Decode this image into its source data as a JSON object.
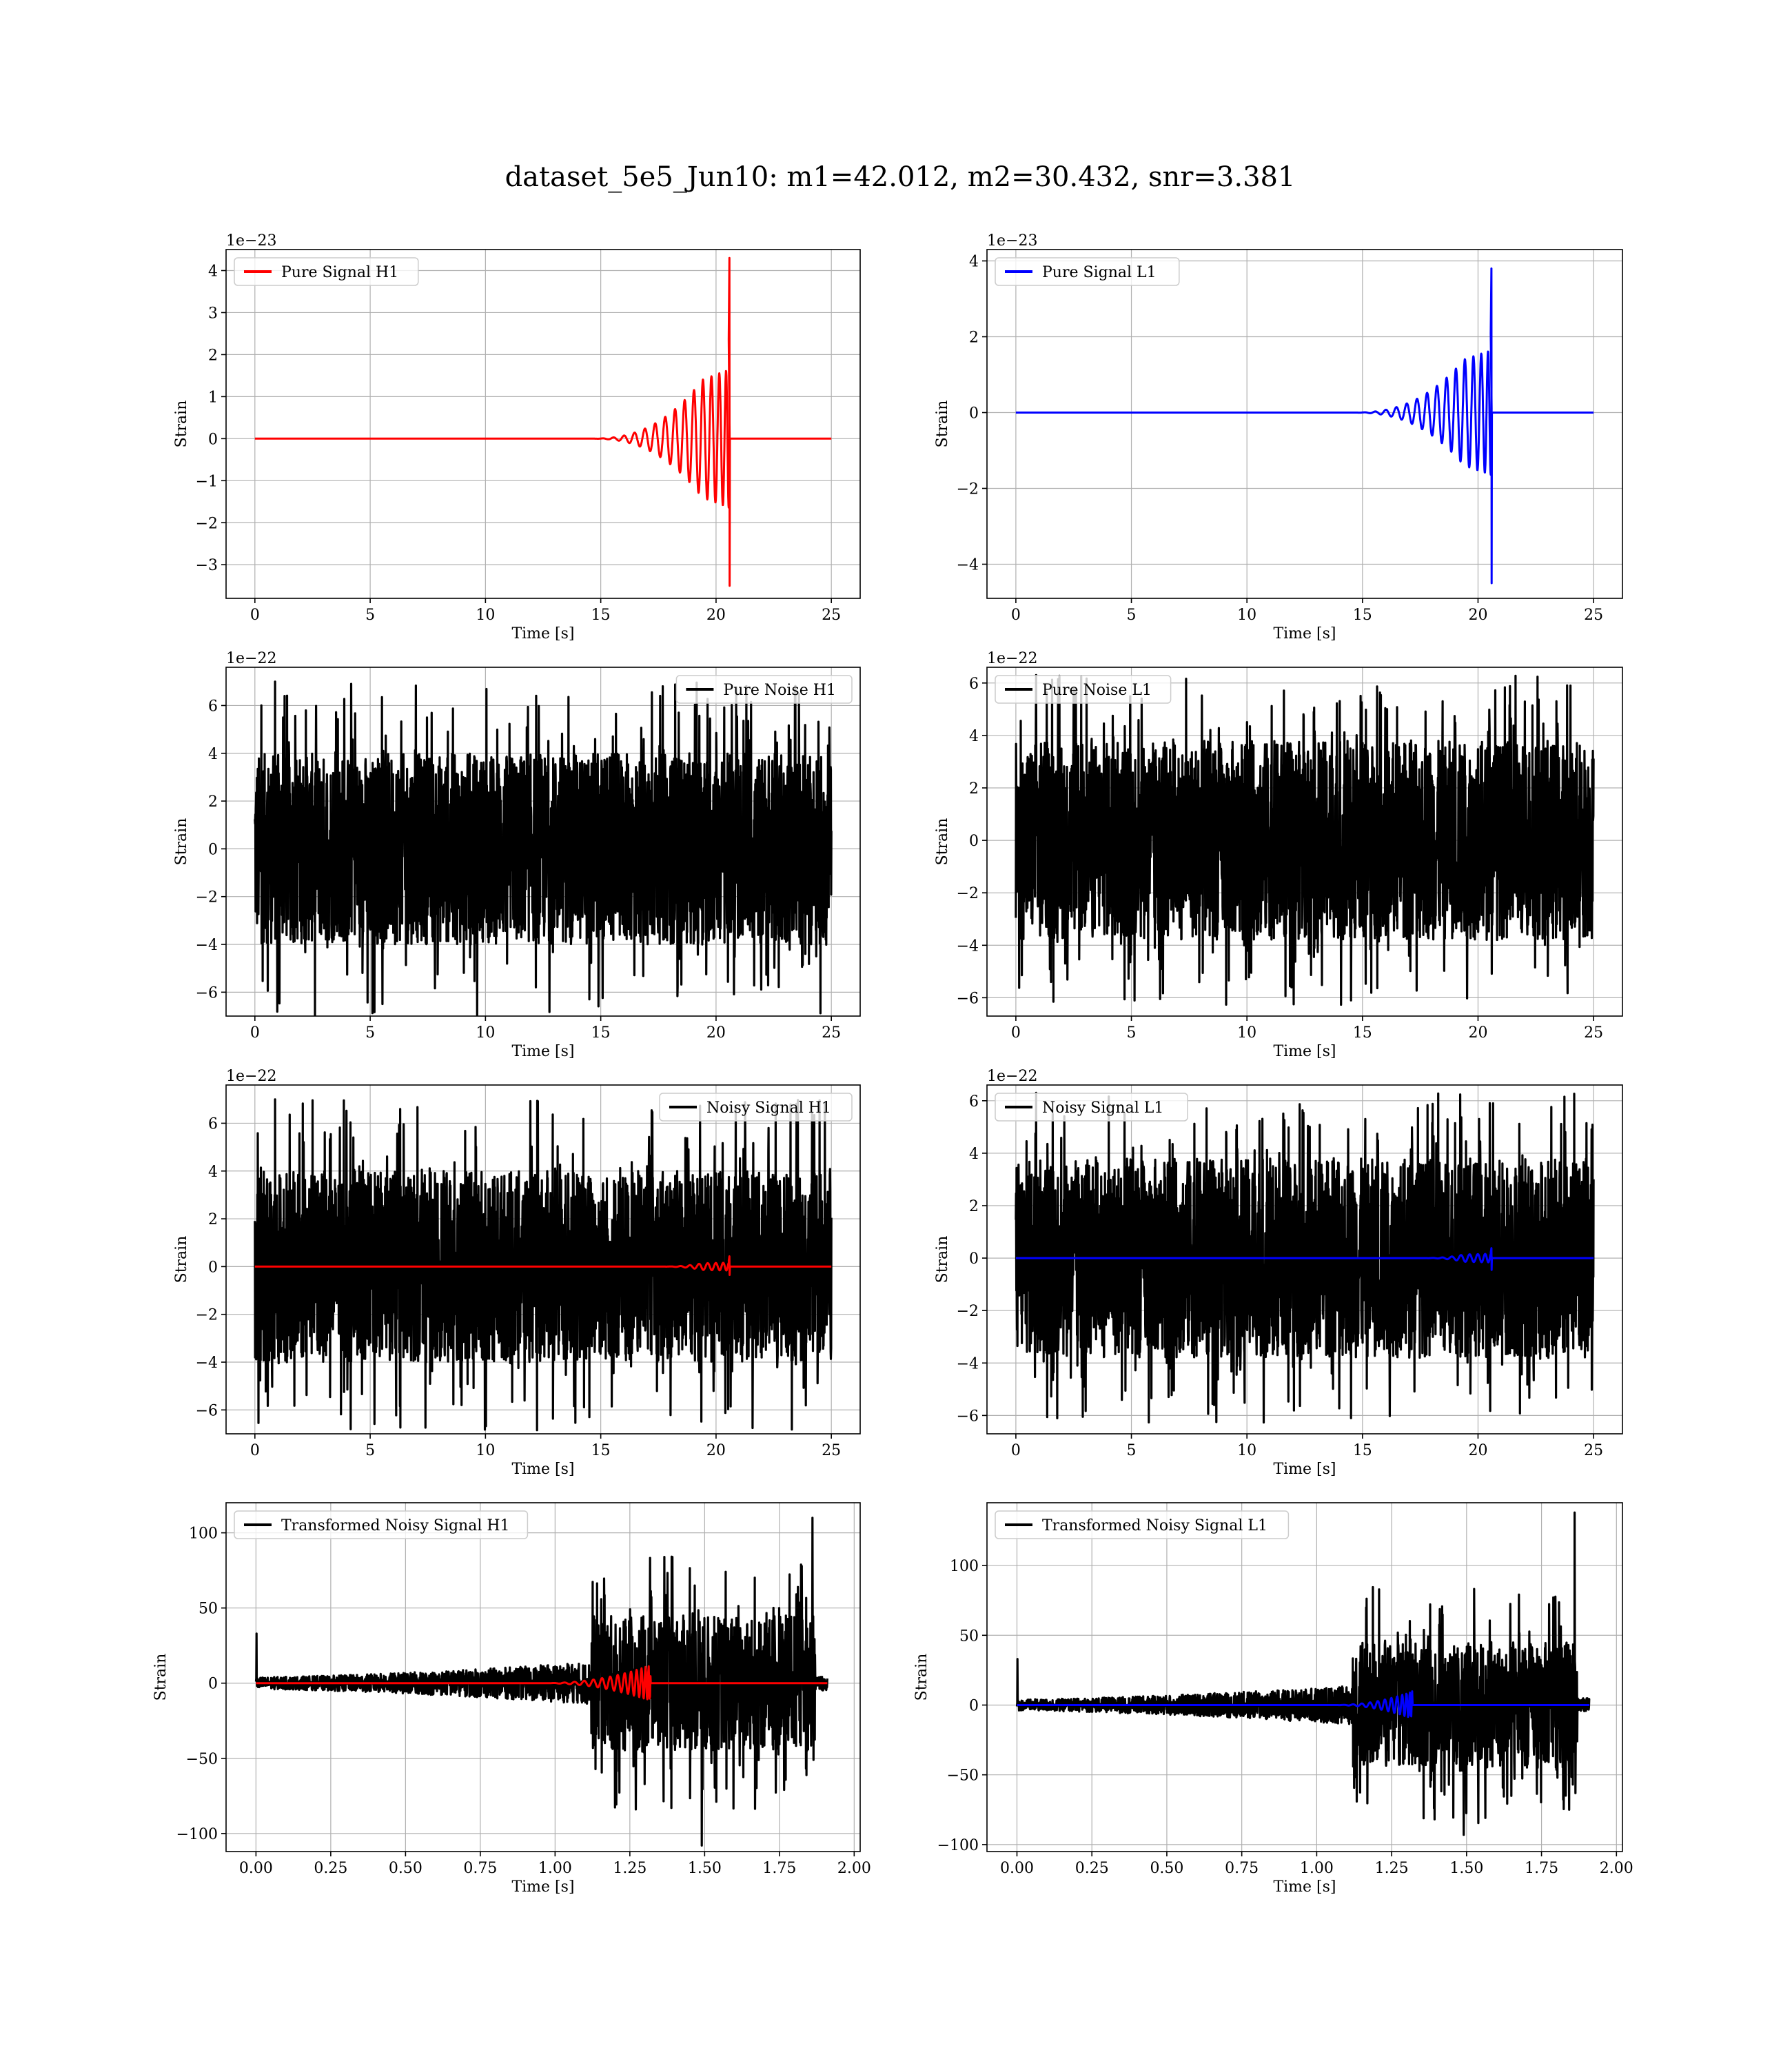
{
  "figure": {
    "title": "dataset_5e5_Jun10: m1=42.012, m2=30.432, snr=3.381"
  },
  "chart_data": [
    {
      "id": "pure_h1",
      "type": "line",
      "title": "",
      "xlabel": "Time [s]",
      "ylabel": "Strain",
      "offset_text": "1e−23",
      "xlim": [
        -1.25,
        26.25
      ],
      "ylim": [
        -3.8,
        4.5
      ],
      "xticks": [
        0,
        5,
        10,
        15,
        20,
        25
      ],
      "xtick_labels": [
        "0",
        "5",
        "10",
        "15",
        "20",
        "25"
      ],
      "yticks": [
        -3,
        -2,
        -1,
        0,
        1,
        2,
        3,
        4
      ],
      "ytick_labels": [
        "−3",
        "−2",
        "−1",
        "0",
        "1",
        "2",
        "3",
        "4"
      ],
      "grid": true,
      "legend_position": "upper-left",
      "series": [
        {
          "name": "Pure Signal H1",
          "color": "#ff0000",
          "kind": "chirp",
          "x_end": 25,
          "t_merger": 20.6,
          "t_start_visible": 14.5,
          "peak_pos": 4.3,
          "peak_neg": -3.5,
          "plateau_amp": 1.4
        }
      ]
    },
    {
      "id": "pure_l1",
      "type": "line",
      "title": "",
      "xlabel": "Time [s]",
      "ylabel": "Strain",
      "offset_text": "1e−23",
      "xlim": [
        -1.25,
        26.25
      ],
      "ylim": [
        -4.9,
        4.3
      ],
      "xticks": [
        0,
        5,
        10,
        15,
        20,
        25
      ],
      "xtick_labels": [
        "0",
        "5",
        "10",
        "15",
        "20",
        "25"
      ],
      "yticks": [
        -4,
        -2,
        0,
        2,
        4
      ],
      "ytick_labels": [
        "−4",
        "−2",
        "0",
        "2",
        "4"
      ],
      "grid": true,
      "legend_position": "upper-left",
      "series": [
        {
          "name": "Pure Signal L1",
          "color": "#0000ff",
          "kind": "chirp",
          "x_end": 25,
          "t_merger": 20.6,
          "t_start_visible": 14.5,
          "peak_pos": 3.8,
          "peak_neg": -4.5,
          "plateau_amp": 1.4
        }
      ]
    },
    {
      "id": "noise_h1",
      "type": "line",
      "title": "",
      "xlabel": "Time [s]",
      "ylabel": "Strain",
      "offset_text": "1e−22",
      "xlim": [
        -1.25,
        26.25
      ],
      "ylim": [
        -7.0,
        7.6
      ],
      "xticks": [
        0,
        5,
        10,
        15,
        20,
        25
      ],
      "xtick_labels": [
        "0",
        "5",
        "10",
        "15",
        "20",
        "25"
      ],
      "yticks": [
        -6,
        -4,
        -2,
        0,
        2,
        4,
        6
      ],
      "ytick_labels": [
        "−6",
        "−4",
        "−2",
        "0",
        "2",
        "4",
        "6"
      ],
      "grid": true,
      "legend_position": "upper-right",
      "series": [
        {
          "name": "Pure Noise H1",
          "color": "#000000",
          "kind": "noise",
          "x_end": 25,
          "core_amp": 4.0,
          "max": 7.0,
          "min": -6.3
        }
      ]
    },
    {
      "id": "noise_l1",
      "type": "line",
      "title": "",
      "xlabel": "Time [s]",
      "ylabel": "Strain",
      "offset_text": "1e−22",
      "xlim": [
        -1.25,
        26.25
      ],
      "ylim": [
        -6.7,
        6.6
      ],
      "xticks": [
        0,
        5,
        10,
        15,
        20,
        25
      ],
      "xtick_labels": [
        "0",
        "5",
        "10",
        "15",
        "20",
        "25"
      ],
      "yticks": [
        -6,
        -4,
        -2,
        0,
        2,
        4,
        6
      ],
      "ytick_labels": [
        "−6",
        "−4",
        "−2",
        "0",
        "2",
        "4",
        "6"
      ],
      "grid": true,
      "legend_position": "upper-left",
      "series": [
        {
          "name": "Pure Noise L1",
          "color": "#000000",
          "kind": "noise",
          "x_end": 25,
          "core_amp": 3.8,
          "max": 6.3,
          "min": -6.1
        }
      ]
    },
    {
      "id": "noisy_h1",
      "type": "line",
      "title": "",
      "xlabel": "Time [s]",
      "ylabel": "Strain",
      "offset_text": "1e−22",
      "xlim": [
        -1.25,
        26.25
      ],
      "ylim": [
        -7.0,
        7.6
      ],
      "xticks": [
        0,
        5,
        10,
        15,
        20,
        25
      ],
      "xtick_labels": [
        "0",
        "5",
        "10",
        "15",
        "20",
        "25"
      ],
      "yticks": [
        -6,
        -4,
        -2,
        0,
        2,
        4,
        6
      ],
      "ytick_labels": [
        "−6",
        "−4",
        "−2",
        "0",
        "2",
        "4",
        "6"
      ],
      "grid": true,
      "legend_position": "upper-right",
      "series": [
        {
          "name": "Noisy Signal H1",
          "color": "#000000",
          "kind": "noise",
          "x_end": 25,
          "core_amp": 4.0,
          "max": 7.0,
          "min": -6.3
        },
        {
          "name": "",
          "color": "#ff0000",
          "kind": "chirp",
          "x_end": 25,
          "t_merger": 20.6,
          "t_start_visible": 17.5,
          "peak_pos": 0.43,
          "peak_neg": -0.35,
          "plateau_amp": 0.14
        }
      ]
    },
    {
      "id": "noisy_l1",
      "type": "line",
      "title": "",
      "xlabel": "Time [s]",
      "ylabel": "Strain",
      "offset_text": "1e−22",
      "xlim": [
        -1.25,
        26.25
      ],
      "ylim": [
        -6.7,
        6.6
      ],
      "xticks": [
        0,
        5,
        10,
        15,
        20,
        25
      ],
      "xtick_labels": [
        "0",
        "5",
        "10",
        "15",
        "20",
        "25"
      ],
      "yticks": [
        -6,
        -4,
        -2,
        0,
        2,
        4,
        6
      ],
      "ytick_labels": [
        "−6",
        "−4",
        "−2",
        "0",
        "2",
        "4",
        "6"
      ],
      "grid": true,
      "legend_position": "upper-left",
      "series": [
        {
          "name": "Noisy Signal L1",
          "color": "#000000",
          "kind": "noise",
          "x_end": 25,
          "core_amp": 3.8,
          "max": 6.3,
          "min": -6.1
        },
        {
          "name": "",
          "color": "#0000ff",
          "kind": "chirp",
          "x_end": 25,
          "t_merger": 20.6,
          "t_start_visible": 17.5,
          "peak_pos": 0.38,
          "peak_neg": -0.45,
          "plateau_amp": 0.14
        }
      ]
    },
    {
      "id": "trans_h1",
      "type": "line",
      "title": "",
      "xlabel": "Time [s]",
      "ylabel": "Strain",
      "offset_text": "",
      "xlim": [
        -0.1,
        2.02
      ],
      "ylim": [
        -112,
        120
      ],
      "xticks": [
        0,
        0.25,
        0.5,
        0.75,
        1.0,
        1.25,
        1.5,
        1.75,
        2.0
      ],
      "xtick_labels": [
        "0.00",
        "0.25",
        "0.50",
        "0.75",
        "1.00",
        "1.25",
        "1.50",
        "1.75",
        "2.00"
      ],
      "yticks": [
        -100,
        -50,
        0,
        50,
        100
      ],
      "ytick_labels": [
        "−100",
        "−50",
        "0",
        "50",
        "100"
      ],
      "grid": true,
      "legend_position": "upper-left",
      "series": [
        {
          "name": "Transformed Noisy Signal H1",
          "color": "#000000",
          "kind": "transformed",
          "x_end": 1.91,
          "t_jump": 1.12,
          "t_end_loud": 1.87,
          "max": 110,
          "min": -108
        },
        {
          "name": "",
          "color": "#ff0000",
          "kind": "chirp_short",
          "x_end": 1.91,
          "t_start": 0.95,
          "t_merger": 1.32,
          "peak": 12
        }
      ]
    },
    {
      "id": "trans_l1",
      "type": "line",
      "title": "",
      "xlabel": "Time [s]",
      "ylabel": "Strain",
      "offset_text": "",
      "xlim": [
        -0.1,
        2.02
      ],
      "ylim": [
        -105,
        145
      ],
      "xticks": [
        0,
        0.25,
        0.5,
        0.75,
        1.0,
        1.25,
        1.5,
        1.75,
        2.0
      ],
      "xtick_labels": [
        "0.00",
        "0.25",
        "0.50",
        "0.75",
        "1.00",
        "1.25",
        "1.50",
        "1.75",
        "2.00"
      ],
      "yticks": [
        -100,
        -50,
        0,
        50,
        100
      ],
      "ytick_labels": [
        "−100",
        "−50",
        "0",
        "50",
        "100"
      ],
      "grid": true,
      "legend_position": "upper-left",
      "series": [
        {
          "name": "Transformed Noisy Signal L1",
          "color": "#000000",
          "kind": "transformed",
          "x_end": 1.91,
          "t_jump": 1.12,
          "t_end_loud": 1.87,
          "max": 138,
          "min": -93
        },
        {
          "name": "",
          "color": "#0000ff",
          "kind": "chirp_short",
          "x_end": 1.91,
          "t_start": 1.05,
          "t_merger": 1.32,
          "peak": 10
        }
      ]
    }
  ]
}
